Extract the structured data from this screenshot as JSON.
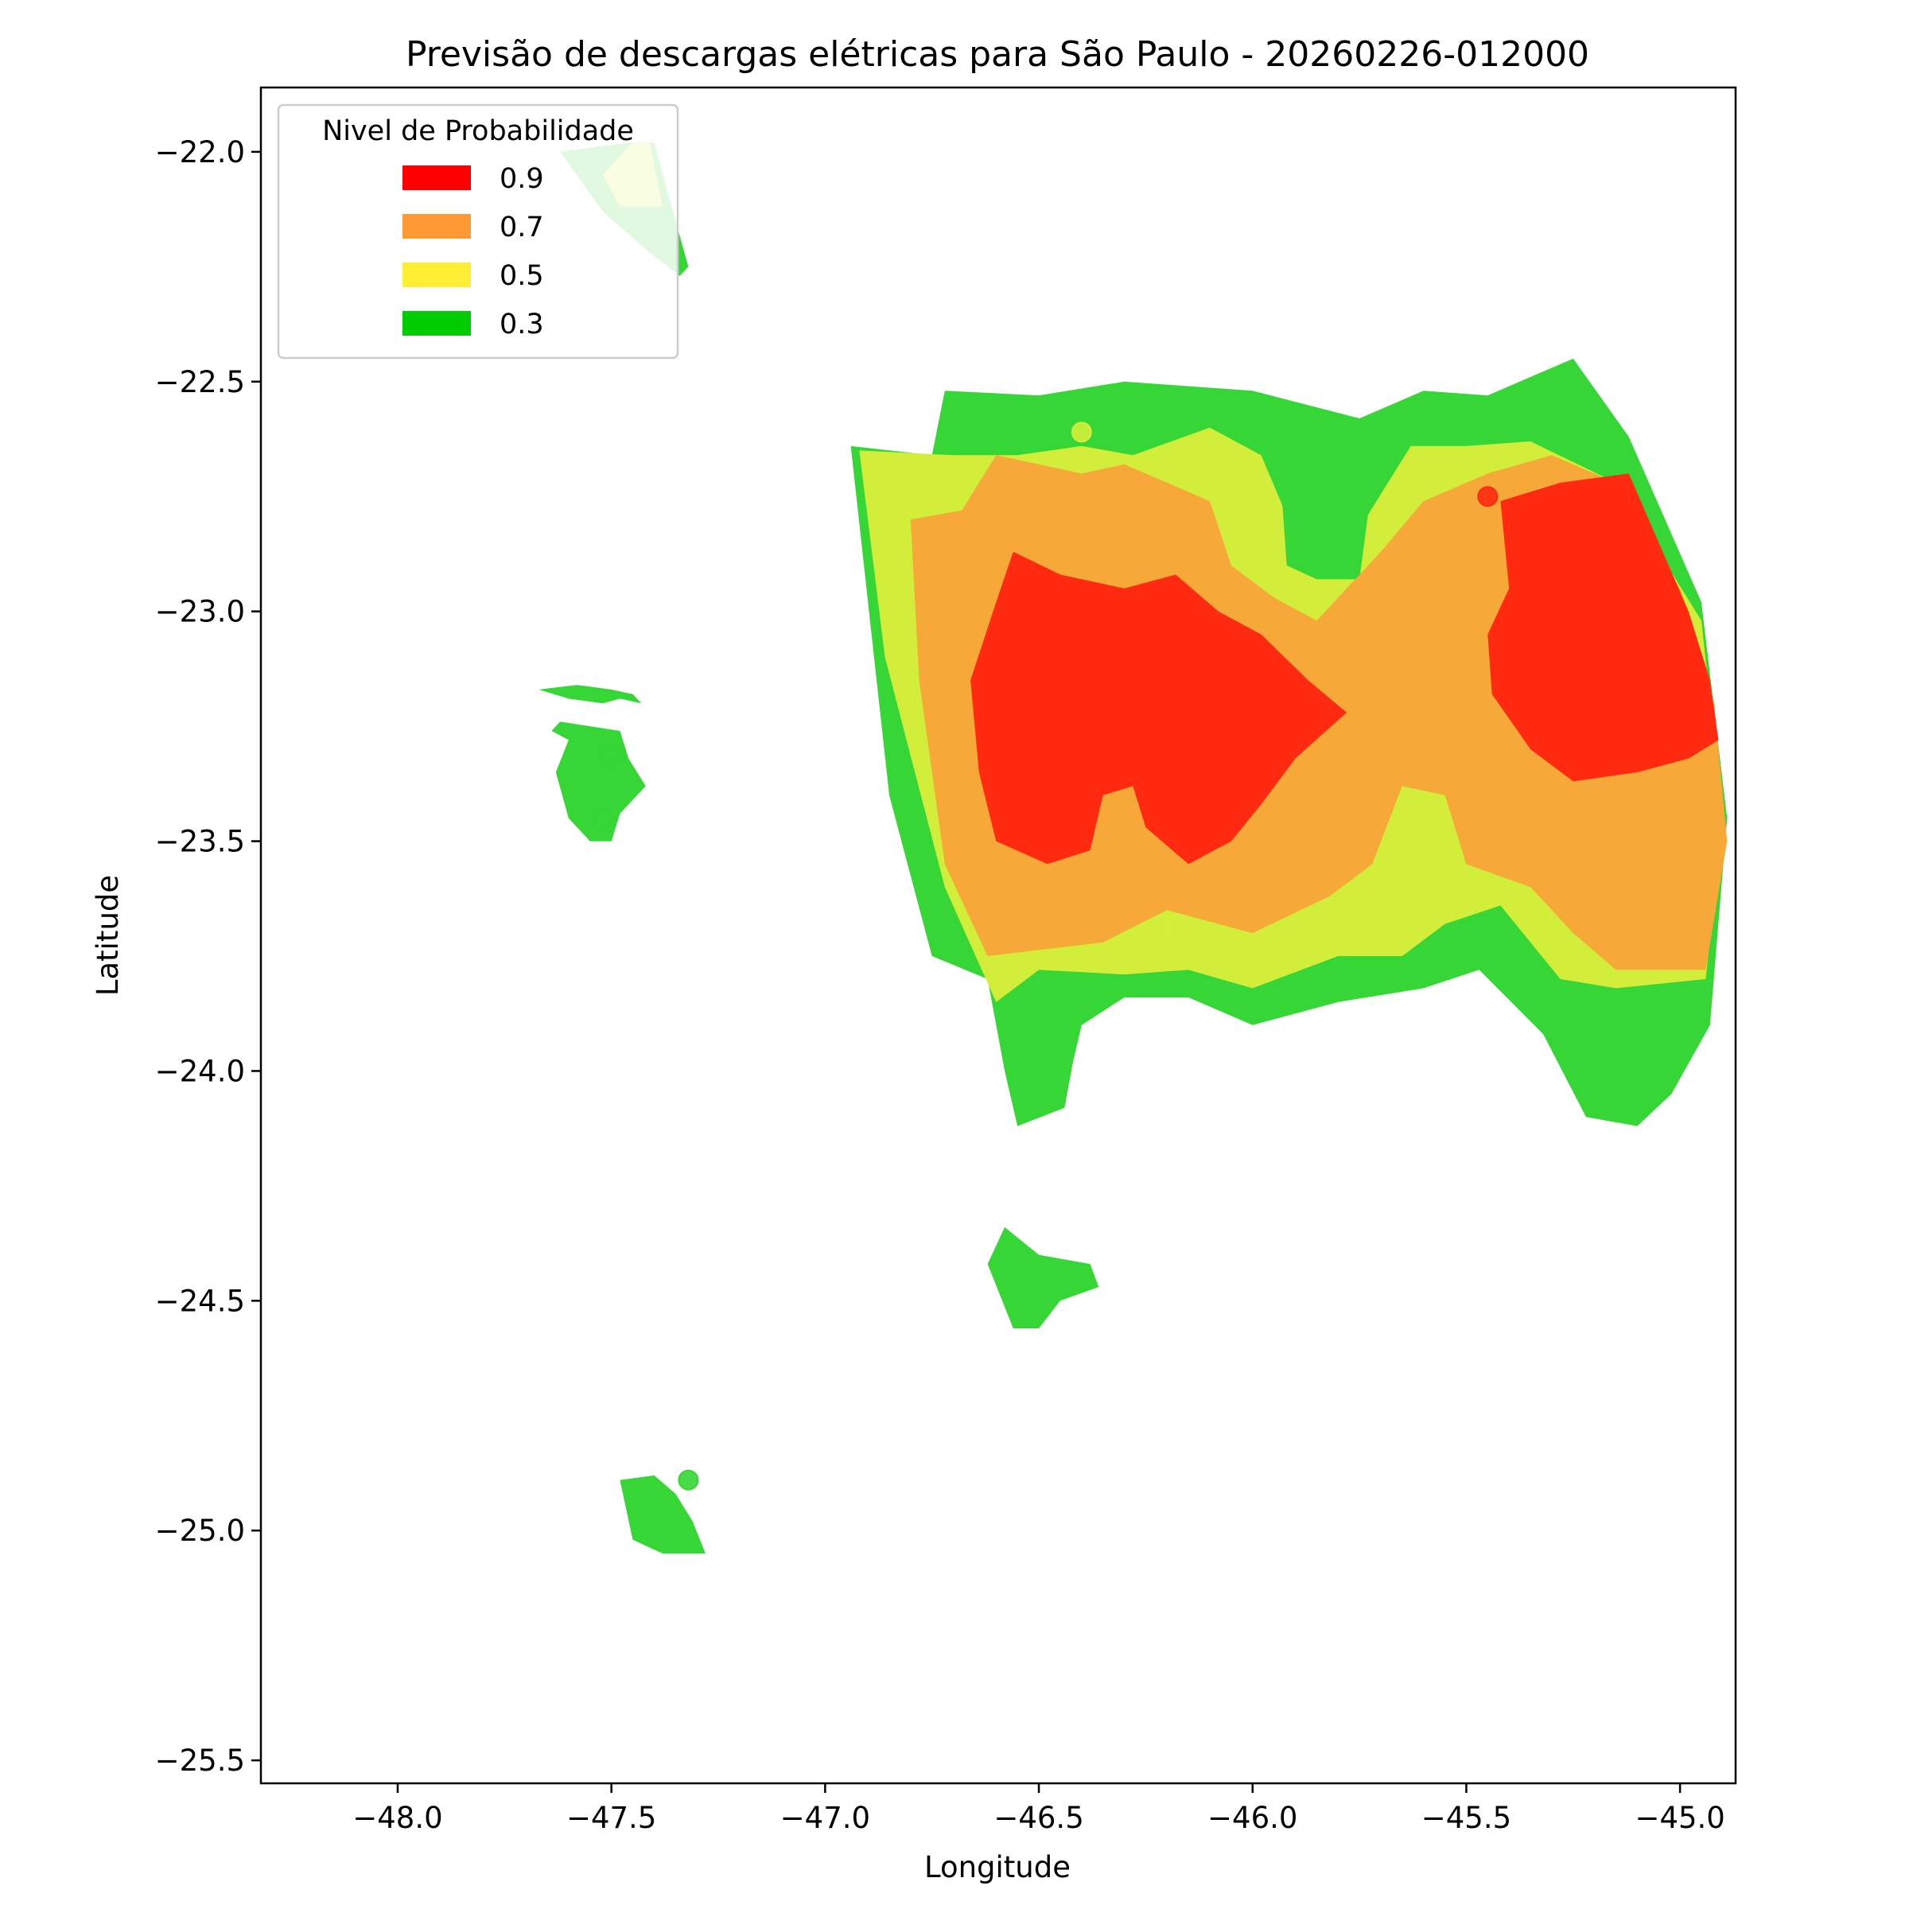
{
  "chart_data": {
    "type": "contour_map",
    "title": "Previsão de descargas elétricas para São Paulo - 20260226-012000",
    "xlabel": "Longitude",
    "ylabel": "Latitude",
    "xlim": [
      -48.32,
      -44.87
    ],
    "ylim": [
      -25.55,
      -21.86
    ],
    "x_ticks": [
      -48.0,
      -47.5,
      -47.0,
      -46.5,
      -46.0,
      -45.5,
      -45.0
    ],
    "x_tick_labels": [
      "−48.0",
      "−47.5",
      "−47.0",
      "−46.5",
      "−46.0",
      "−45.5",
      "−45.0"
    ],
    "y_ticks": [
      -22.0,
      -22.5,
      -23.0,
      -23.5,
      -24.0,
      -24.5,
      -25.0,
      -25.5
    ],
    "y_tick_labels": [
      "−22.0",
      "−22.5",
      "−23.0",
      "−23.5",
      "−24.0",
      "−24.5",
      "−25.0",
      "−25.5"
    ],
    "grid": false,
    "legend": {
      "title": "Nivel de Probabilidade",
      "placement": "upper-left",
      "entries": [
        {
          "label": "0.9",
          "color": "#ff0000"
        },
        {
          "label": "0.7",
          "color": "#ff9933"
        },
        {
          "label": "0.5",
          "color": "#ffee33"
        },
        {
          "label": "0.3",
          "color": "#00cc00"
        }
      ]
    },
    "fill_colors": {
      "0.9": "#ff2a10",
      "0.7": "#f6a938",
      "0.5": "#d3ee3a",
      "0.3": "#35d635"
    },
    "regions": [
      {
        "level": "0.3",
        "points": [
          [
            -46.94,
            -22.64
          ],
          [
            -46.75,
            -22.66
          ],
          [
            -46.72,
            -22.52
          ],
          [
            -46.5,
            -22.53
          ],
          [
            -46.3,
            -22.5
          ],
          [
            -46.0,
            -22.52
          ],
          [
            -45.75,
            -22.58
          ],
          [
            -45.6,
            -22.52
          ],
          [
            -45.45,
            -22.53
          ],
          [
            -45.25,
            -22.45
          ],
          [
            -45.12,
            -22.62
          ],
          [
            -44.95,
            -22.98
          ],
          [
            -44.89,
            -23.45
          ],
          [
            -44.93,
            -23.9
          ],
          [
            -45.02,
            -24.05
          ],
          [
            -45.1,
            -24.12
          ],
          [
            -45.22,
            -24.1
          ],
          [
            -45.32,
            -23.92
          ],
          [
            -45.47,
            -23.78
          ],
          [
            -45.6,
            -23.82
          ],
          [
            -45.8,
            -23.85
          ],
          [
            -46.0,
            -23.9
          ],
          [
            -46.15,
            -23.84
          ],
          [
            -46.3,
            -23.84
          ],
          [
            -46.4,
            -23.9
          ],
          [
            -46.42,
            -23.98
          ],
          [
            -46.44,
            -24.08
          ],
          [
            -46.55,
            -24.12
          ],
          [
            -46.58,
            -24.0
          ],
          [
            -46.62,
            -23.8
          ],
          [
            -46.75,
            -23.75
          ],
          [
            -46.85,
            -23.4
          ]
        ]
      },
      {
        "level": "0.5",
        "points": [
          [
            -46.92,
            -22.65
          ],
          [
            -46.7,
            -22.66
          ],
          [
            -46.55,
            -22.66
          ],
          [
            -46.4,
            -22.64
          ],
          [
            -46.28,
            -22.66
          ],
          [
            -46.1,
            -22.6
          ],
          [
            -45.98,
            -22.66
          ],
          [
            -45.93,
            -22.77
          ],
          [
            -45.92,
            -22.9
          ],
          [
            -45.85,
            -22.93
          ],
          [
            -45.75,
            -22.93
          ],
          [
            -45.73,
            -22.79
          ],
          [
            -45.63,
            -22.64
          ],
          [
            -45.5,
            -22.64
          ],
          [
            -45.35,
            -22.63
          ],
          [
            -45.15,
            -22.72
          ],
          [
            -44.95,
            -23.02
          ],
          [
            -44.9,
            -23.45
          ],
          [
            -44.94,
            -23.8
          ],
          [
            -45.15,
            -23.82
          ],
          [
            -45.28,
            -23.8
          ],
          [
            -45.42,
            -23.64
          ],
          [
            -45.55,
            -23.68
          ],
          [
            -45.65,
            -23.75
          ],
          [
            -45.8,
            -23.75
          ],
          [
            -46.0,
            -23.82
          ],
          [
            -46.15,
            -23.78
          ],
          [
            -46.3,
            -23.79
          ],
          [
            -46.5,
            -23.78
          ],
          [
            -46.6,
            -23.85
          ],
          [
            -46.72,
            -23.6
          ],
          [
            -46.86,
            -23.1
          ]
        ]
      },
      {
        "level": "0.7",
        "points": [
          [
            -46.8,
            -22.8
          ],
          [
            -46.68,
            -22.78
          ],
          [
            -46.6,
            -22.66
          ],
          [
            -46.4,
            -22.7
          ],
          [
            -46.3,
            -22.68
          ],
          [
            -46.1,
            -22.76
          ],
          [
            -46.05,
            -22.9
          ],
          [
            -45.95,
            -22.97
          ],
          [
            -45.85,
            -23.02
          ],
          [
            -45.78,
            -22.95
          ],
          [
            -45.7,
            -22.87
          ],
          [
            -45.6,
            -22.76
          ],
          [
            -45.45,
            -22.7
          ],
          [
            -45.3,
            -22.66
          ],
          [
            -45.15,
            -22.72
          ],
          [
            -45.0,
            -22.95
          ],
          [
            -44.92,
            -23.2
          ],
          [
            -44.89,
            -23.5
          ],
          [
            -44.94,
            -23.78
          ],
          [
            -45.15,
            -23.78
          ],
          [
            -45.25,
            -23.7
          ],
          [
            -45.35,
            -23.6
          ],
          [
            -45.5,
            -23.55
          ],
          [
            -45.55,
            -23.4
          ],
          [
            -45.65,
            -23.38
          ],
          [
            -45.72,
            -23.55
          ],
          [
            -45.82,
            -23.62
          ],
          [
            -46.0,
            -23.7
          ],
          [
            -46.2,
            -23.65
          ],
          [
            -46.35,
            -23.72
          ],
          [
            -46.62,
            -23.75
          ],
          [
            -46.72,
            -23.55
          ],
          [
            -46.78,
            -23.15
          ]
        ]
      },
      {
        "level": "0.9",
        "points": [
          [
            -46.56,
            -22.87
          ],
          [
            -46.45,
            -22.92
          ],
          [
            -46.3,
            -22.95
          ],
          [
            -46.18,
            -22.92
          ],
          [
            -46.08,
            -23.0
          ],
          [
            -45.98,
            -23.05
          ],
          [
            -45.87,
            -23.15
          ],
          [
            -45.78,
            -23.22
          ],
          [
            -45.9,
            -23.32
          ],
          [
            -45.98,
            -23.42
          ],
          [
            -46.05,
            -23.5
          ],
          [
            -46.15,
            -23.55
          ],
          [
            -46.25,
            -23.47
          ],
          [
            -46.28,
            -23.38
          ],
          [
            -46.35,
            -23.4
          ],
          [
            -46.38,
            -23.52
          ],
          [
            -46.48,
            -23.55
          ],
          [
            -46.6,
            -23.5
          ],
          [
            -46.64,
            -23.35
          ],
          [
            -46.66,
            -23.15
          ],
          [
            -46.6,
            -22.98
          ]
        ]
      },
      {
        "level": "0.9",
        "points": [
          [
            -45.42,
            -22.76
          ],
          [
            -45.28,
            -22.72
          ],
          [
            -45.12,
            -22.7
          ],
          [
            -45.05,
            -22.85
          ],
          [
            -44.98,
            -23.0
          ],
          [
            -44.93,
            -23.15
          ],
          [
            -44.91,
            -23.28
          ],
          [
            -44.98,
            -23.32
          ],
          [
            -45.1,
            -23.35
          ],
          [
            -45.25,
            -23.37
          ],
          [
            -45.35,
            -23.3
          ],
          [
            -45.44,
            -23.18
          ],
          [
            -45.45,
            -23.05
          ],
          [
            -45.4,
            -22.95
          ]
        ]
      },
      {
        "level": "0.3",
        "points": [
          [
            -47.62,
            -22.0
          ],
          [
            -47.46,
            -21.98
          ],
          [
            -47.4,
            -21.98
          ],
          [
            -47.35,
            -22.15
          ],
          [
            -47.32,
            -22.25
          ],
          [
            -47.34,
            -22.27
          ],
          [
            -47.41,
            -22.22
          ],
          [
            -47.52,
            -22.13
          ]
        ]
      },
      {
        "level": "0.5",
        "points": [
          [
            -47.45,
            -21.98
          ],
          [
            -47.41,
            -21.98
          ],
          [
            -47.38,
            -22.12
          ],
          [
            -47.48,
            -22.12
          ],
          [
            -47.52,
            -22.05
          ]
        ]
      },
      {
        "level": "0.3",
        "points": [
          [
            -47.58,
            -23.16
          ],
          [
            -47.5,
            -23.17
          ],
          [
            -47.45,
            -23.18
          ],
          [
            -47.43,
            -23.2
          ],
          [
            -47.48,
            -23.19
          ],
          [
            -47.52,
            -23.2
          ],
          [
            -47.6,
            -23.19
          ],
          [
            -47.67,
            -23.17
          ]
        ]
      },
      {
        "level": "0.3",
        "points": [
          [
            -47.62,
            -23.24
          ],
          [
            -47.48,
            -23.26
          ],
          [
            -47.46,
            -23.32
          ],
          [
            -47.42,
            -23.38
          ],
          [
            -47.48,
            -23.44
          ],
          [
            -47.5,
            -23.5
          ],
          [
            -47.55,
            -23.5
          ],
          [
            -47.6,
            -23.45
          ],
          [
            -47.63,
            -23.35
          ],
          [
            -47.6,
            -23.28
          ],
          [
            -47.64,
            -23.26
          ]
        ]
      },
      {
        "level": "0.3",
        "points": [
          [
            -46.58,
            -24.34
          ],
          [
            -46.5,
            -24.4
          ],
          [
            -46.38,
            -24.42
          ],
          [
            -46.36,
            -24.47
          ],
          [
            -46.45,
            -24.5
          ],
          [
            -46.5,
            -24.56
          ],
          [
            -46.56,
            -24.56
          ],
          [
            -46.62,
            -24.42
          ]
        ]
      },
      {
        "level": "0.3",
        "points": [
          [
            -47.48,
            -24.89
          ],
          [
            -47.4,
            -24.88
          ],
          [
            -47.35,
            -24.92
          ],
          [
            -47.31,
            -24.98
          ],
          [
            -47.28,
            -25.05
          ],
          [
            -47.38,
            -25.05
          ],
          [
            -47.45,
            -25.02
          ]
        ]
      }
    ],
    "markers": [
      {
        "x": -46.4,
        "y": -22.61,
        "level": "0.5"
      },
      {
        "x": -45.45,
        "y": -22.75,
        "level": "0.9"
      },
      {
        "x": -47.5,
        "y": -23.31,
        "level": "0.3"
      },
      {
        "x": -47.52,
        "y": -23.45,
        "level": "0.3"
      },
      {
        "x": -46.51,
        "y": -23.64,
        "level": "0.7"
      },
      {
        "x": -46.05,
        "y": -23.64,
        "level": "0.7"
      },
      {
        "x": -46.2,
        "y": -23.69,
        "level": "0.5"
      },
      {
        "x": -47.32,
        "y": -24.89,
        "level": "0.3"
      }
    ]
  }
}
